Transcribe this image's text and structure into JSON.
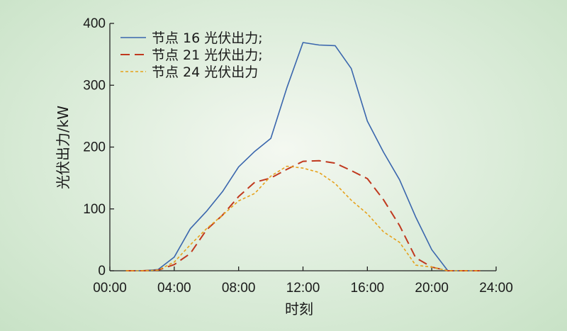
{
  "chart_data": {
    "type": "line",
    "xlabel": "时刻",
    "ylabel": "光伏出力/kW",
    "xlim": [
      0,
      24
    ],
    "ylim": [
      0,
      400
    ],
    "xticks": [
      0,
      4,
      8,
      12,
      16,
      20,
      24
    ],
    "xtick_labels": [
      "00:00",
      "04:00",
      "08:00",
      "12:00",
      "16:00",
      "20:00",
      "24:00"
    ],
    "yticks": [
      0,
      100,
      200,
      300,
      400
    ],
    "ytick_labels": [
      "0",
      "100",
      "200",
      "300",
      "400"
    ],
    "grid": false,
    "legend_position": "top-left",
    "x": [
      1,
      2,
      3,
      4,
      5,
      6,
      7,
      8,
      9,
      10,
      11,
      12,
      13,
      14,
      15,
      16,
      17,
      18,
      19,
      20,
      21,
      22,
      23
    ],
    "series": [
      {
        "name": "节点 16 光伏出力;",
        "color": "#3a66ad",
        "style": "solid",
        "values": [
          0,
          0,
          2,
          22,
          68,
          96,
          128,
          168,
          193,
          214,
          296,
          369,
          365,
          364,
          327,
          242,
          192,
          147,
          87,
          34,
          0,
          0,
          0
        ]
      },
      {
        "name": "节点 21 光伏出力;",
        "color": "#c0391f",
        "style": "dashed",
        "values": [
          0,
          0,
          1,
          10,
          28,
          66,
          90,
          120,
          143,
          150,
          164,
          177,
          178,
          174,
          162,
          149,
          115,
          73,
          21,
          6,
          0,
          0,
          0
        ]
      },
      {
        "name": "节点 24 光伏出力",
        "color": "#e6a21c",
        "style": "dotted",
        "values": [
          0,
          0,
          1,
          14,
          42,
          68,
          90,
          113,
          125,
          153,
          169,
          166,
          159,
          141,
          114,
          92,
          63,
          46,
          9,
          6,
          0,
          0,
          0
        ]
      }
    ]
  }
}
